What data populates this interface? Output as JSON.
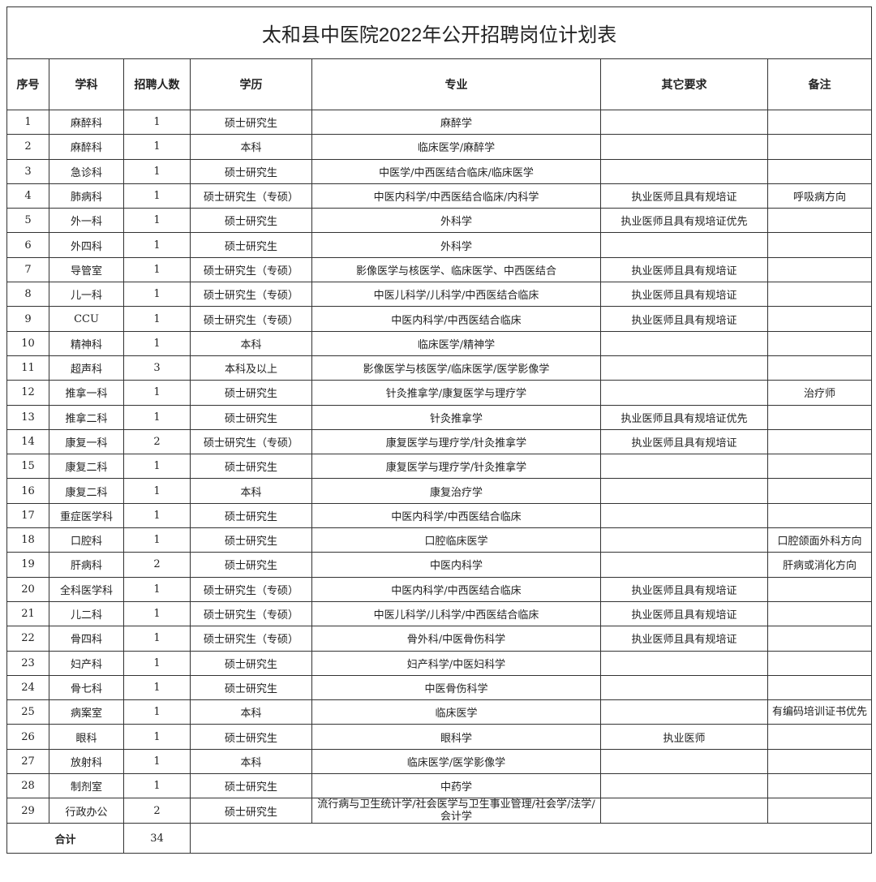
{
  "title": "太和县中医院2022年公开招聘岗位计划表",
  "headers": [
    "序号",
    "学科",
    "招聘人数",
    "学历",
    "专业",
    "其它要求",
    "备注"
  ],
  "rows": [
    [
      "1",
      "麻醉科",
      "1",
      "硕士研究生",
      "麻醉学",
      "",
      ""
    ],
    [
      "2",
      "麻醉科",
      "1",
      "本科",
      "临床医学/麻醉学",
      "",
      ""
    ],
    [
      "3",
      "急诊科",
      "1",
      "硕士研究生",
      "中医学/中西医结合临床/临床医学",
      "",
      ""
    ],
    [
      "4",
      "肺病科",
      "1",
      "硕士研究生（专硕）",
      "中医内科学/中西医结合临床/内科学",
      "执业医师且具有规培证",
      "呼吸病方向"
    ],
    [
      "5",
      "外一科",
      "1",
      "硕士研究生",
      "外科学",
      "执业医师且具有规培证优先",
      ""
    ],
    [
      "6",
      "外四科",
      "1",
      "硕士研究生",
      "外科学",
      "",
      ""
    ],
    [
      "7",
      "导管室",
      "1",
      "硕士研究生（专硕）",
      "影像医学与核医学、临床医学、中西医结合",
      "执业医师且具有规培证",
      ""
    ],
    [
      "8",
      "儿一科",
      "1",
      "硕士研究生（专硕）",
      "中医儿科学/儿科学/中西医结合临床",
      "执业医师且具有规培证",
      ""
    ],
    [
      "9",
      "CCU",
      "1",
      "硕士研究生（专硕）",
      "中医内科学/中西医结合临床",
      "执业医师且具有规培证",
      ""
    ],
    [
      "10",
      "精神科",
      "1",
      "本科",
      "临床医学/精神学",
      "",
      ""
    ],
    [
      "11",
      "超声科",
      "3",
      "本科及以上",
      "影像医学与核医学/临床医学/医学影像学",
      "",
      ""
    ],
    [
      "12",
      "推拿一科",
      "1",
      "硕士研究生",
      "针灸推拿学/康复医学与理疗学",
      "",
      "治疗师"
    ],
    [
      "13",
      "推拿二科",
      "1",
      "硕士研究生",
      "针灸推拿学",
      "执业医师且具有规培证优先",
      ""
    ],
    [
      "14",
      "康复一科",
      "2",
      "硕士研究生（专硕）",
      "康复医学与理疗学/针灸推拿学",
      "执业医师且具有规培证",
      ""
    ],
    [
      "15",
      "康复二科",
      "1",
      "硕士研究生",
      "康复医学与理疗学/针灸推拿学",
      "",
      ""
    ],
    [
      "16",
      "康复二科",
      "1",
      "本科",
      "康复治疗学",
      "",
      ""
    ],
    [
      "17",
      "重症医学科",
      "1",
      "硕士研究生",
      "中医内科学/中西医结合临床",
      "",
      ""
    ],
    [
      "18",
      "口腔科",
      "1",
      "硕士研究生",
      "口腔临床医学",
      "",
      "口腔颌面外科方向"
    ],
    [
      "19",
      "肝病科",
      "2",
      "硕士研究生",
      "中医内科学",
      "",
      "肝病或消化方向"
    ],
    [
      "20",
      "全科医学科",
      "1",
      "硕士研究生（专硕）",
      "中医内科学/中西医结合临床",
      "执业医师且具有规培证",
      ""
    ],
    [
      "21",
      "儿二科",
      "1",
      "硕士研究生（专硕）",
      "中医儿科学/儿科学/中西医结合临床",
      "执业医师且具有规培证",
      ""
    ],
    [
      "22",
      "骨四科",
      "1",
      "硕士研究生（专硕）",
      "骨外科/中医骨伤科学",
      "执业医师且具有规培证",
      ""
    ],
    [
      "23",
      "妇产科",
      "1",
      "硕士研究生",
      "妇产科学/中医妇科学",
      "",
      ""
    ],
    [
      "24",
      "骨七科",
      "1",
      "硕士研究生",
      "中医骨伤科学",
      "",
      ""
    ],
    [
      "25",
      "病案室",
      "1",
      "本科",
      "临床医学",
      "",
      "有编码培训证书优先"
    ],
    [
      "26",
      "眼科",
      "1",
      "硕士研究生",
      "眼科学",
      "执业医师",
      ""
    ],
    [
      "27",
      "放射科",
      "1",
      "本科",
      "临床医学/医学影像学",
      "",
      ""
    ],
    [
      "28",
      "制剂室",
      "1",
      "硕士研究生",
      "中药学",
      "",
      ""
    ],
    [
      "29",
      "行政办公",
      "2",
      "硕士研究生",
      "流行病与卫生统计学/社会医学与卫生事业管理/社会学/法学/会计学",
      "",
      ""
    ]
  ],
  "total": {
    "label": "合计",
    "count": "34"
  }
}
